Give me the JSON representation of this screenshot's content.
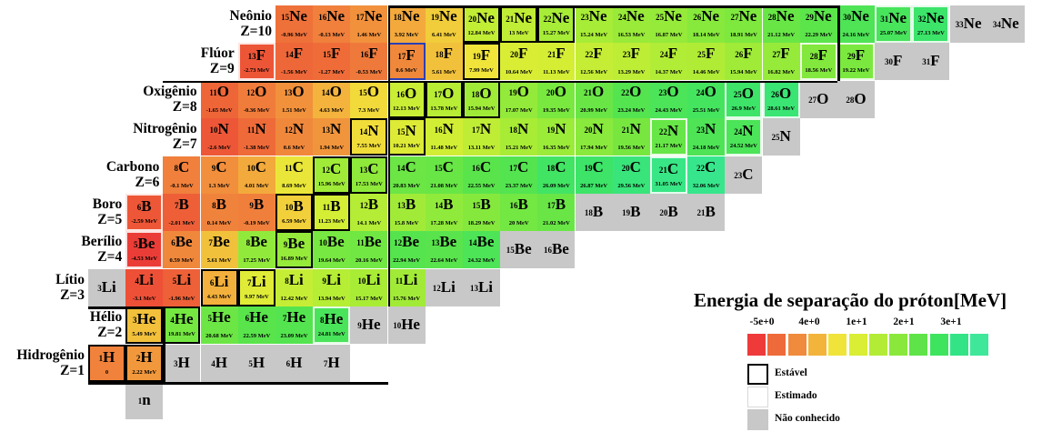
{
  "chart_data": {
    "type": "heatmap",
    "title": "Energia de separação do próton[MeV]",
    "colorbar": {
      "ticks": [
        "-5e+0",
        "4e+0",
        "1e+1",
        "2e+1",
        "3e+1"
      ],
      "colors": [
        "#ef3a3a",
        "#ee6a3a",
        "#f08a3c",
        "#f3b43c",
        "#f0e33a",
        "#d9ee34",
        "#b3ec36",
        "#8ae83c",
        "#5ee448",
        "#3ee45e",
        "#33e486",
        "#3fe79a"
      ]
    },
    "legend": [
      {
        "key": "stable",
        "label": "Estável"
      },
      {
        "key": "estimated",
        "label": "Estimado"
      },
      {
        "key": "unknown",
        "label": "Não conhecido"
      }
    ],
    "rows": [
      {
        "name": "Neônio",
        "z": "Z=10",
        "symbol": "Ne",
        "start_n": 5,
        "cells": [
          {
            "a": 15,
            "v": "-0.96 MeV"
          },
          {
            "a": 16,
            "v": "-0.13 MeV"
          },
          {
            "a": 17,
            "v": "1.46 MeV"
          },
          {
            "a": 18,
            "v": "3.92 MeV"
          },
          {
            "a": 19,
            "v": "6.41 MeV"
          },
          {
            "a": 20,
            "v": "12.84 MeV",
            "s": "stable"
          },
          {
            "a": 21,
            "v": "13 MeV",
            "s": "stable"
          },
          {
            "a": 22,
            "v": "15.27 MeV",
            "s": "stable"
          },
          {
            "a": 23,
            "v": "15.24 MeV"
          },
          {
            "a": 24,
            "v": "16.53 MeV"
          },
          {
            "a": 25,
            "v": "16.87 MeV"
          },
          {
            "a": 26,
            "v": "18.14 MeV"
          },
          {
            "a": 27,
            "v": "18.91 MeV"
          },
          {
            "a": 28,
            "v": "21.12 MeV"
          },
          {
            "a": 29,
            "v": "22.29 MeV"
          },
          {
            "a": 30,
            "v": "24.16 MeV"
          },
          {
            "a": 31,
            "v": "25.07 MeV",
            "s": "estimated"
          },
          {
            "a": 32,
            "v": "27.13 MeV",
            "s": "estimated"
          },
          {
            "a": 33,
            "v": ""
          },
          {
            "a": 34,
            "v": ""
          }
        ]
      },
      {
        "name": "Flúor",
        "z": "Z=9",
        "symbol": "F",
        "start_n": 4,
        "cells": [
          {
            "a": 13,
            "v": "-2.73 MeV",
            "s": "estimated"
          },
          {
            "a": 14,
            "v": "-1.56 MeV"
          },
          {
            "a": 15,
            "v": "-1.27 MeV"
          },
          {
            "a": 16,
            "v": "-0.53 MeV"
          },
          {
            "a": 17,
            "v": "0.6 MeV",
            "s": "special"
          },
          {
            "a": 18,
            "v": "5.61 MeV"
          },
          {
            "a": 19,
            "v": "7.99 MeV",
            "s": "stable"
          },
          {
            "a": 20,
            "v": "10.64 MeV"
          },
          {
            "a": 21,
            "v": "11.13 MeV"
          },
          {
            "a": 22,
            "v": "12.56 MeV"
          },
          {
            "a": 23,
            "v": "13.29 MeV"
          },
          {
            "a": 24,
            "v": "14.37 MeV"
          },
          {
            "a": 25,
            "v": "14.46 MeV"
          },
          {
            "a": 26,
            "v": "15.94 MeV"
          },
          {
            "a": 27,
            "v": "16.82 MeV"
          },
          {
            "a": 28,
            "v": "18.56 MeV",
            "s": "estimated"
          },
          {
            "a": 29,
            "v": "19.22 MeV",
            "s": "estimated"
          },
          {
            "a": 30,
            "v": ""
          },
          {
            "a": 31,
            "v": ""
          }
        ]
      },
      {
        "name": "Oxigênio",
        "z": "Z=8",
        "symbol": "O",
        "start_n": 3,
        "cells": [
          {
            "a": 11,
            "v": "-1.65 MeV"
          },
          {
            "a": 12,
            "v": "-0.36 MeV"
          },
          {
            "a": 13,
            "v": "1.51 MeV"
          },
          {
            "a": 14,
            "v": "4.63 MeV"
          },
          {
            "a": 15,
            "v": "7.3 MeV"
          },
          {
            "a": 16,
            "v": "12.13 MeV",
            "s": "stable"
          },
          {
            "a": 17,
            "v": "13.78 MeV",
            "s": "stable"
          },
          {
            "a": 18,
            "v": "15.94 MeV",
            "s": "stable"
          },
          {
            "a": 19,
            "v": "17.07 MeV"
          },
          {
            "a": 20,
            "v": "19.35 MeV"
          },
          {
            "a": 21,
            "v": "20.99 MeV"
          },
          {
            "a": 22,
            "v": "23.24 MeV"
          },
          {
            "a": 23,
            "v": "24.43 MeV"
          },
          {
            "a": 24,
            "v": "25.51 MeV"
          },
          {
            "a": 25,
            "v": "26.9 MeV",
            "s": "estimated"
          },
          {
            "a": 26,
            "v": "28.61 MeV",
            "s": "estimated"
          },
          {
            "a": 27,
            "v": ""
          },
          {
            "a": 28,
            "v": ""
          }
        ]
      },
      {
        "name": "Nitrogênio",
        "z": "Z=7",
        "symbol": "N",
        "start_n": 3,
        "cells": [
          {
            "a": 10,
            "v": "-2.6 MeV"
          },
          {
            "a": 11,
            "v": "-1.38 MeV"
          },
          {
            "a": 12,
            "v": "0.6 MeV"
          },
          {
            "a": 13,
            "v": "1.94 MeV"
          },
          {
            "a": 14,
            "v": "7.55 MeV",
            "s": "stable"
          },
          {
            "a": 15,
            "v": "10.21 MeV",
            "s": "stable"
          },
          {
            "a": 16,
            "v": "11.48 MeV"
          },
          {
            "a": 17,
            "v": "13.11 MeV"
          },
          {
            "a": 18,
            "v": "15.21 MeV"
          },
          {
            "a": 19,
            "v": "16.35 MeV"
          },
          {
            "a": 20,
            "v": "17.94 MeV"
          },
          {
            "a": 21,
            "v": "19.56 MeV"
          },
          {
            "a": 22,
            "v": "21.17 MeV",
            "s": "estimated"
          },
          {
            "a": 23,
            "v": "24.18 MeV"
          },
          {
            "a": 24,
            "v": "24.52 MeV",
            "s": "estimated"
          },
          {
            "a": 25,
            "v": ""
          }
        ]
      },
      {
        "name": "Carbono",
        "z": "Z=6",
        "symbol": "C",
        "start_n": 2,
        "cells": [
          {
            "a": 8,
            "v": "-0.1 MeV"
          },
          {
            "a": 9,
            "v": "1.3 MeV"
          },
          {
            "a": 10,
            "v": "4.01 MeV"
          },
          {
            "a": 11,
            "v": "8.69 MeV"
          },
          {
            "a": 12,
            "v": "15.96 MeV",
            "s": "stable"
          },
          {
            "a": 13,
            "v": "17.53 MeV",
            "s": "stable"
          },
          {
            "a": 14,
            "v": "20.83 MeV"
          },
          {
            "a": 15,
            "v": "21.08 MeV"
          },
          {
            "a": 16,
            "v": "22.55 MeV"
          },
          {
            "a": 17,
            "v": "23.37 MeV"
          },
          {
            "a": 18,
            "v": "26.09 MeV"
          },
          {
            "a": 19,
            "v": "26.87 MeV"
          },
          {
            "a": 20,
            "v": "29.56 MeV"
          },
          {
            "a": 21,
            "v": "31.05 MeV",
            "s": "estimated"
          },
          {
            "a": 22,
            "v": "32.06 MeV"
          },
          {
            "a": 23,
            "v": ""
          }
        ]
      },
      {
        "name": "Boro",
        "z": "Z=5",
        "symbol": "B",
        "start_n": 1,
        "cells": [
          {
            "a": 6,
            "v": "-2.59 MeV",
            "s": "estimated"
          },
          {
            "a": 7,
            "v": "-2.01 MeV"
          },
          {
            "a": 8,
            "v": "0.14 MeV"
          },
          {
            "a": 9,
            "v": "-0.19 MeV"
          },
          {
            "a": 10,
            "v": "6.59 MeV",
            "s": "stable"
          },
          {
            "a": 11,
            "v": "11.23 MeV",
            "s": "stable"
          },
          {
            "a": 12,
            "v": "14.1 MeV"
          },
          {
            "a": 13,
            "v": "15.8 MeV"
          },
          {
            "a": 14,
            "v": "17.28 MeV"
          },
          {
            "a": 15,
            "v": "18.29 MeV"
          },
          {
            "a": 16,
            "v": "20 MeV"
          },
          {
            "a": 17,
            "v": "21.02 MeV"
          },
          {
            "a": 18,
            "v": ""
          },
          {
            "a": 19,
            "v": ""
          },
          {
            "a": 20,
            "v": ""
          },
          {
            "a": 21,
            "v": ""
          }
        ]
      },
      {
        "name": "Berílio",
        "z": "Z=4",
        "symbol": "Be",
        "start_n": 1,
        "cells": [
          {
            "a": 5,
            "v": "-4.53 MeV",
            "s": "estimated"
          },
          {
            "a": 6,
            "v": "0.59 MeV"
          },
          {
            "a": 7,
            "v": "5.61 MeV"
          },
          {
            "a": 8,
            "v": "17.25 MeV"
          },
          {
            "a": 9,
            "v": "16.89 MeV",
            "s": "stable"
          },
          {
            "a": 10,
            "v": "19.64 MeV"
          },
          {
            "a": 11,
            "v": "20.16 MeV"
          },
          {
            "a": 12,
            "v": "22.94 MeV"
          },
          {
            "a": 13,
            "v": "22.64 MeV"
          },
          {
            "a": 14,
            "v": "24.32 MeV"
          },
          {
            "a": 15,
            "v": ""
          },
          {
            "a": 16,
            "v": ""
          }
        ]
      },
      {
        "name": "Lítio",
        "z": "Z=3",
        "symbol": "Li",
        "start_n": 0,
        "cells": [
          {
            "a": 3,
            "v": ""
          },
          {
            "a": 4,
            "v": "-3.1 MeV"
          },
          {
            "a": 5,
            "v": "-1.96 MeV"
          },
          {
            "a": 6,
            "v": "4.43 MeV",
            "s": "stable"
          },
          {
            "a": 7,
            "v": "9.97 MeV",
            "s": "stable"
          },
          {
            "a": 8,
            "v": "12.42 MeV"
          },
          {
            "a": 9,
            "v": "13.94 MeV"
          },
          {
            "a": 10,
            "v": "15.17 MeV"
          },
          {
            "a": 11,
            "v": "15.76 MeV"
          },
          {
            "a": 12,
            "v": ""
          },
          {
            "a": 13,
            "v": ""
          }
        ]
      },
      {
        "name": "Hélio",
        "z": "Z=2",
        "symbol": "He",
        "start_n": 1,
        "cells": [
          {
            "a": 3,
            "v": "5.49 MeV",
            "s": "stable"
          },
          {
            "a": 4,
            "v": "19.81 MeV",
            "s": "stable"
          },
          {
            "a": 5,
            "v": "20.68 MeV"
          },
          {
            "a": 6,
            "v": "22.59 MeV"
          },
          {
            "a": 7,
            "v": "23.09 MeV"
          },
          {
            "a": 8,
            "v": "24.81 MeV",
            "s": "estimated"
          },
          {
            "a": 9,
            "v": ""
          },
          {
            "a": 10,
            "v": ""
          }
        ]
      },
      {
        "name": "Hidrogênio",
        "z": "Z=1",
        "symbol": "H",
        "start_n": 0,
        "cells": [
          {
            "a": 1,
            "v": "0",
            "s": "stable"
          },
          {
            "a": 2,
            "v": "2.22 MeV",
            "s": "stable"
          },
          {
            "a": 3,
            "v": ""
          },
          {
            "a": 4,
            "v": ""
          },
          {
            "a": 5,
            "v": ""
          },
          {
            "a": 6,
            "v": ""
          },
          {
            "a": 7,
            "v": ""
          }
        ]
      },
      {
        "name": "",
        "z": "",
        "symbol": "n",
        "start_n": 1,
        "cells": [
          {
            "a": 1,
            "v": ""
          }
        ]
      }
    ]
  }
}
